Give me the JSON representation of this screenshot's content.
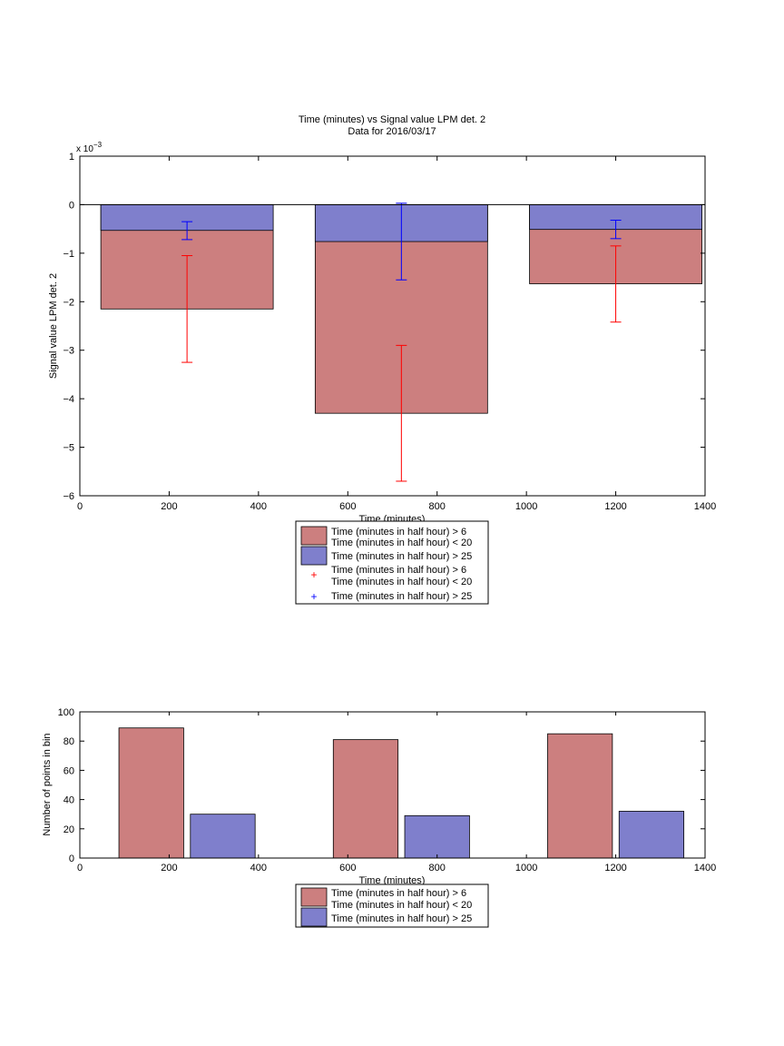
{
  "chart_data": [
    {
      "type": "bar",
      "title": "Time (minutes) vs Signal value LPM det. 2",
      "subtitle": "Data for 2016/03/17",
      "xlabel": "Time (minutes)",
      "ylabel": "Signal value LPM det. 2",
      "yexponent_base": "x 10",
      "yexponent_power": "−3",
      "xlim": [
        0,
        1400
      ],
      "ylim": [
        -6,
        1
      ],
      "xticks": [
        "0",
        "200",
        "400",
        "600",
        "800",
        "1000",
        "1200",
        "1400"
      ],
      "yticks": [
        "1",
        "0",
        "−1",
        "−2",
        "−3",
        "−4",
        "−5",
        "−6"
      ],
      "bar_width": 386,
      "x": [
        240,
        720,
        1200
      ],
      "series": [
        {
          "name": "Time (minutes in half hour) > 6\nTime (minutes in half hour) < 20",
          "color": "#cc7f7f",
          "errcolor": "#ff0000",
          "values": [
            -2.15,
            -4.3,
            -1.63
          ],
          "err_low": [
            -3.25,
            -5.7,
            -2.42
          ],
          "err_high": [
            -1.05,
            -2.9,
            -0.85
          ]
        },
        {
          "name": "Time (minutes in half hour) > 25",
          "color": "#7f7fcc",
          "errcolor": "#0000ff",
          "values": [
            -0.53,
            -0.76,
            -0.51
          ],
          "err_low": [
            -0.72,
            -1.55,
            -0.7
          ],
          "err_high": [
            -0.35,
            0.03,
            -0.32
          ]
        }
      ],
      "legend": {
        "placement": "below",
        "entries": [
          {
            "line1": "Time (minutes in half hour) > 6",
            "line2": "Time (minutes in half hour) < 20"
          },
          {
            "line1": "Time (minutes in half hour) > 25",
            "line2": ""
          },
          {
            "line1": "Time (minutes in half hour) > 6",
            "line2": "Time (minutes in half hour) < 20"
          },
          {
            "line1": "Time (minutes in half hour) > 25",
            "line2": ""
          }
        ]
      }
    },
    {
      "type": "bar",
      "xlabel": "Time (minutes)",
      "ylabel": "Number of points in bin",
      "xlim": [
        0,
        1400
      ],
      "ylim": [
        0,
        100
      ],
      "xticks": [
        "0",
        "200",
        "400",
        "600",
        "800",
        "1000",
        "1200",
        "1400"
      ],
      "yticks": [
        "0",
        "20",
        "40",
        "60",
        "80",
        "100"
      ],
      "bar_width": 145,
      "series": [
        {
          "name": "Time (minutes in half hour) > 6\nTime (minutes in half hour) < 20",
          "color": "#cc7f7f",
          "x": [
            160,
            640,
            1120
          ],
          "values": [
            89,
            81,
            85
          ]
        },
        {
          "name": "Time (minutes in half hour) > 25",
          "color": "#7f7fcc",
          "x": [
            320,
            800,
            1280
          ],
          "values": [
            30,
            29,
            32
          ]
        }
      ],
      "legend": {
        "placement": "below",
        "entries": [
          {
            "line1": "Time (minutes in half hour) > 6",
            "line2": "Time (minutes in half hour) < 20"
          },
          {
            "line1": "Time (minutes in half hour) > 25",
            "line2": ""
          }
        ]
      }
    }
  ]
}
